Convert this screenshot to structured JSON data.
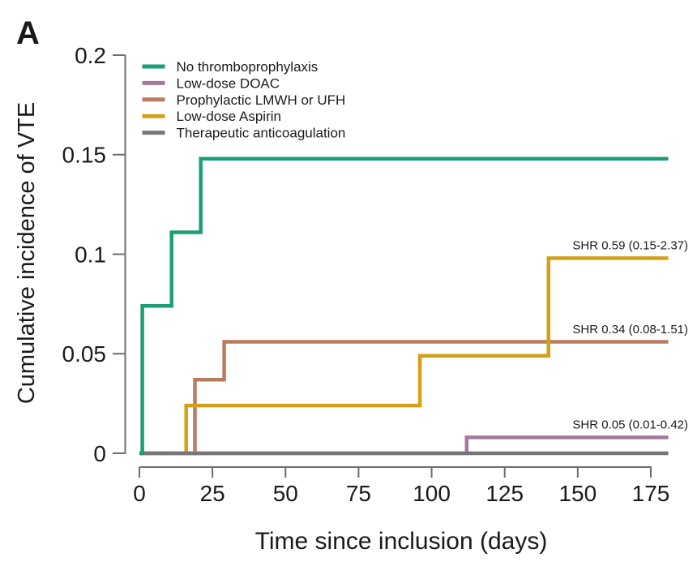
{
  "figure": {
    "panel_label": "A",
    "background_color": "#ffffff",
    "text_color": "#1a1a1a",
    "axis_color": "#6e6e6e"
  },
  "chart_data": {
    "type": "line",
    "subtype": "step-cumulative-incidence",
    "title": "",
    "panel_label": "A",
    "xlabel": "Time since inclusion (days)",
    "ylabel": "Cumulative incidence of VTE",
    "xlim": [
      0,
      181
    ],
    "ylim": [
      0,
      0.2
    ],
    "xticks": [
      0,
      25,
      50,
      75,
      100,
      125,
      150,
      175
    ],
    "yticks": [
      0,
      0.05,
      0.1,
      0.15,
      0.2
    ],
    "ytick_labels": [
      "0",
      "0.05",
      "0.1",
      "0.15",
      "0.2"
    ],
    "grid": false,
    "legend_position": "top-left",
    "series": [
      {
        "name": "No thromboprophylaxis",
        "color": "#1b9e77",
        "steps": [
          [
            0,
            0
          ],
          [
            1,
            0.074
          ],
          [
            11,
            0.111
          ],
          [
            21,
            0.148
          ],
          [
            181,
            0.148
          ]
        ]
      },
      {
        "name": "Low-dose DOAC",
        "color": "#a3799c",
        "steps": [
          [
            0,
            0
          ],
          [
            112,
            0.008
          ],
          [
            181,
            0.008
          ]
        ]
      },
      {
        "name": "Prophylactic LMWH or UFH",
        "color": "#b87c5e",
        "steps": [
          [
            0,
            0
          ],
          [
            19,
            0.037
          ],
          [
            29,
            0.056
          ],
          [
            181,
            0.056
          ]
        ]
      },
      {
        "name": "Low-dose Aspirin",
        "color": "#d3a118",
        "steps": [
          [
            0,
            0
          ],
          [
            16,
            0.024
          ],
          [
            96,
            0.049
          ],
          [
            140,
            0.098
          ],
          [
            181,
            0.098
          ]
        ]
      },
      {
        "name": "Therapeutic anticoagulation",
        "color": "#767676",
        "steps": [
          [
            0,
            0
          ],
          [
            181,
            0
          ]
        ]
      }
    ],
    "annotations": [
      {
        "text": "SHR 0.59 (0.15-2.37)",
        "series": "Low-dose Aspirin",
        "value": 0.098
      },
      {
        "text": "SHR 0.34 (0.08-1.51)",
        "series": "Prophylactic LMWH or UFH",
        "value": 0.056
      },
      {
        "text": "SHR 0.05 (0.01-0.42)",
        "series": "Low-dose DOAC",
        "value": 0.008
      }
    ]
  }
}
